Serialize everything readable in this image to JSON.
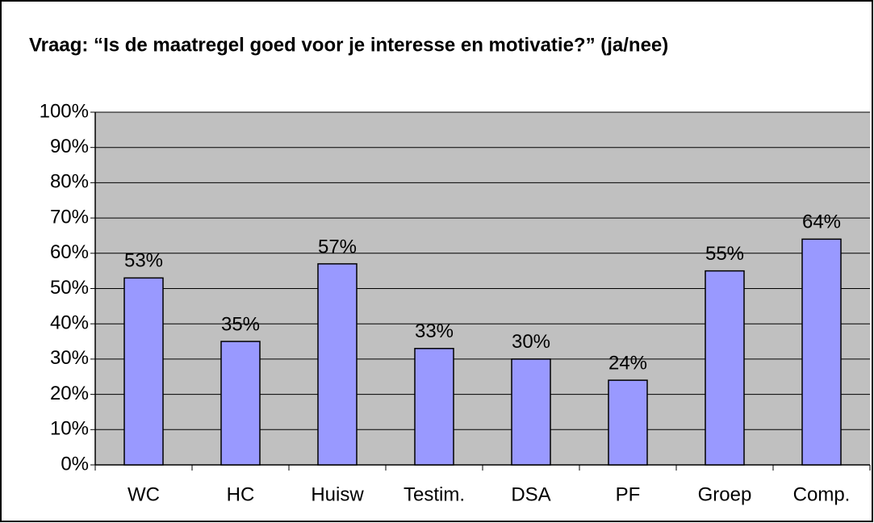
{
  "chart_data": {
    "type": "bar",
    "title": "Vraag: “Is de maatregel goed voor je interesse en motivatie?” (ja/nee)",
    "categories": [
      "WC",
      "HC",
      "Huisw",
      "Testim.",
      "DSA",
      "PF",
      "Groep",
      "Comp."
    ],
    "values": [
      53,
      35,
      57,
      33,
      30,
      24,
      55,
      64
    ],
    "value_labels": [
      "53%",
      "35%",
      "57%",
      "33%",
      "30%",
      "24%",
      "55%",
      "64%"
    ],
    "color": "#9999ff",
    "ylim": [
      0,
      100
    ],
    "yticks": [
      {
        "value": 0,
        "label": "0%"
      },
      {
        "value": 10,
        "label": "10%"
      },
      {
        "value": 20,
        "label": "20%"
      },
      {
        "value": 30,
        "label": "30%"
      },
      {
        "value": 40,
        "label": "40%"
      },
      {
        "value": 50,
        "label": "50%"
      },
      {
        "value": 60,
        "label": "60%"
      },
      {
        "value": 70,
        "label": "70%"
      },
      {
        "value": 80,
        "label": "80%"
      },
      {
        "value": 90,
        "label": "90%"
      },
      {
        "value": 100,
        "label": "100%"
      }
    ],
    "grid": true
  }
}
